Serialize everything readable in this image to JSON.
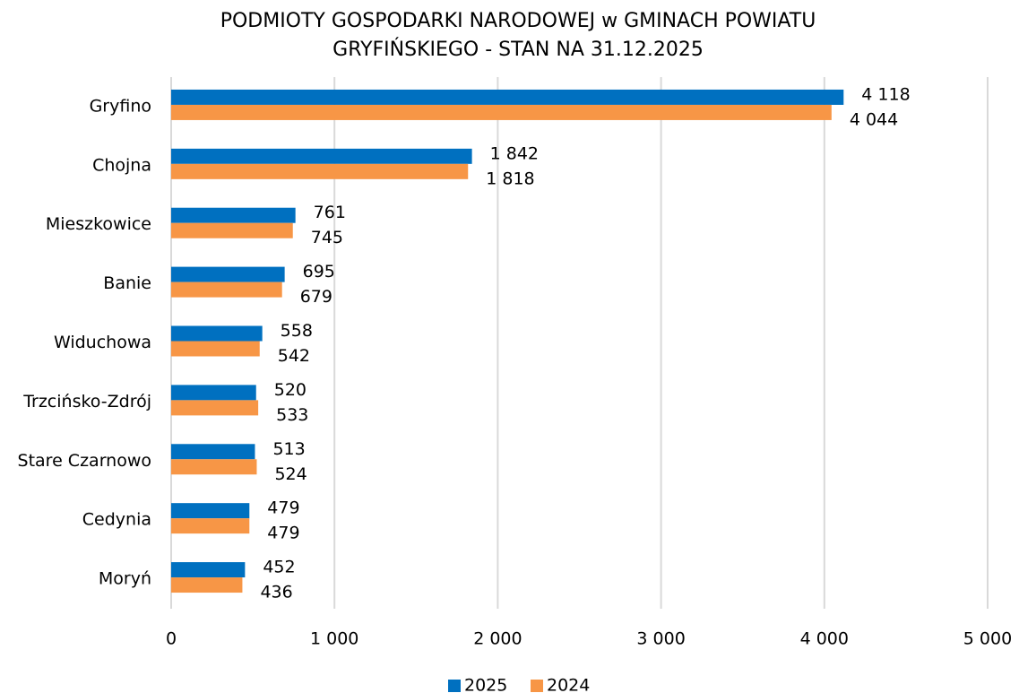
{
  "chart_data": {
    "type": "hbar",
    "title": [
      "PODMIOTY GOSPODARKI NARODOWEJ w GMINACH POWIATU",
      "GRYFIŃSKIEGO - STAN NA 31.12.2025"
    ],
    "categories": [
      "Gryfino",
      "Chojna",
      "Mieszkowice",
      "Banie",
      "Widuchowa",
      "Trzcińsko-Zdrój",
      "Stare Czarnowo",
      "Cedynia",
      "Moryń"
    ],
    "series": [
      {
        "name": "2025",
        "color": "#0070c0",
        "values": [
          4118,
          1842,
          761,
          695,
          558,
          520,
          513,
          479,
          452
        ],
        "value_labels": [
          "4 118",
          "1 842",
          "761",
          "695",
          "558",
          "520",
          "513",
          "479",
          "452"
        ]
      },
      {
        "name": "2024",
        "color": "#f79646",
        "values": [
          4044,
          1818,
          745,
          679,
          542,
          533,
          524,
          479,
          436
        ],
        "value_labels": [
          "4 044",
          "1 818",
          "745",
          "679",
          "542",
          "533",
          "524",
          "479",
          "436"
        ]
      }
    ],
    "xlim": [
      0,
      5000
    ],
    "xticks": [
      0,
      {
        "value": 1000,
        "label": "1 000"
      },
      {
        "value": 2000,
        "label": "2 000"
      },
      {
        "value": 3000,
        "label": "3 000"
      },
      {
        "value": 4000,
        "label": "4 000"
      },
      {
        "value": 5000,
        "label": "5 000"
      }
    ],
    "grid": true,
    "legend": "bottom"
  }
}
